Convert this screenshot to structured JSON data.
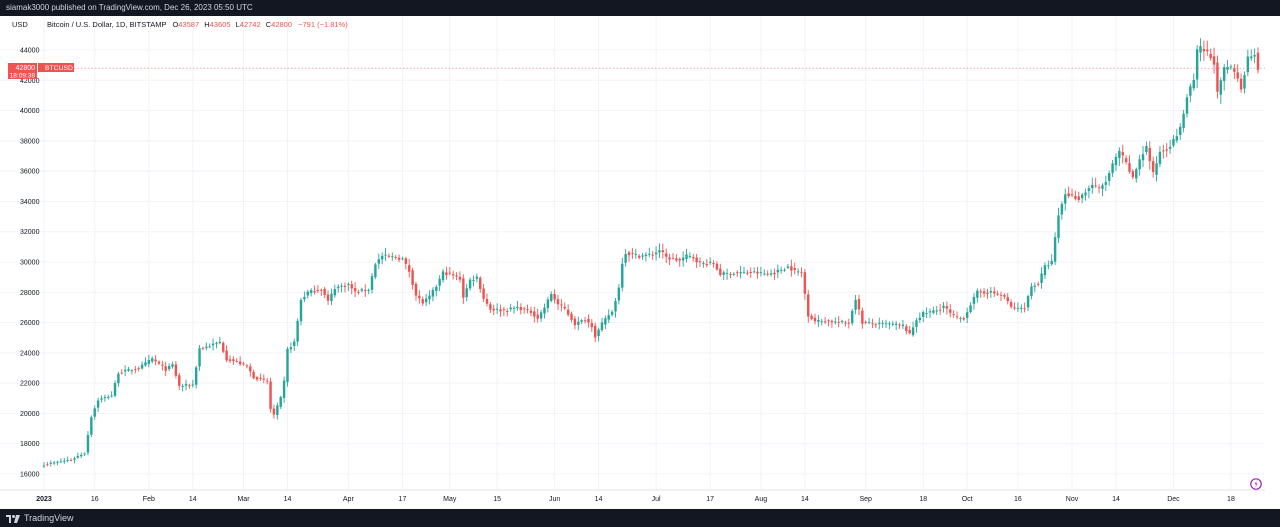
{
  "header": {
    "published": "siamak3000 published on TradingView.com, Dec 26, 2023 05:50 UTC"
  },
  "footer": {
    "brand": "TradingView",
    "logo": "tradingview-logo-icon"
  },
  "chart_data": {
    "type": "candlestick",
    "title": "Bitcoin / U.S. Dollar, 1D, BITSTAMP",
    "currency": "USD",
    "ohlc_readout": {
      "o_label": "O",
      "o": "43587",
      "h_label": "H",
      "h": "43605",
      "l_label": "L",
      "l": "42742",
      "c_label": "C",
      "c": "42800",
      "change": "−791 (−1.81%)"
    },
    "last_price": {
      "value": "42800",
      "countdown": "18:09:38",
      "symbol": "BTCUSD",
      "price": 42800
    },
    "yaxis": {
      "min": 15000,
      "max": 45000,
      "ticks": [
        16000,
        18000,
        20000,
        22000,
        24000,
        26000,
        28000,
        30000,
        32000,
        34000,
        36000,
        38000,
        40000,
        42000,
        44000
      ]
    },
    "xaxis": {
      "ticks": [
        {
          "label": "2023",
          "day": 0
        },
        {
          "label": "16",
          "day": 15
        },
        {
          "label": "Feb",
          "day": 31
        },
        {
          "label": "14",
          "day": 44
        },
        {
          "label": "Mar",
          "day": 59
        },
        {
          "label": "14",
          "day": 72
        },
        {
          "label": "Apr",
          "day": 90
        },
        {
          "label": "17",
          "day": 106
        },
        {
          "label": "May",
          "day": 120
        },
        {
          "label": "15",
          "day": 134
        },
        {
          "label": "Jun",
          "day": 151
        },
        {
          "label": "14",
          "day": 164
        },
        {
          "label": "Jul",
          "day": 181
        },
        {
          "label": "17",
          "day": 197
        },
        {
          "label": "Aug",
          "day": 212
        },
        {
          "label": "14",
          "day": 225
        },
        {
          "label": "Sep",
          "day": 243
        },
        {
          "label": "18",
          "day": 260
        },
        {
          "label": "Oct",
          "day": 273
        },
        {
          "label": "16",
          "day": 288
        },
        {
          "label": "Nov",
          "day": 304
        },
        {
          "label": "14",
          "day": 317
        },
        {
          "label": "Dec",
          "day": 334
        },
        {
          "label": "18",
          "day": 351
        }
      ],
      "last_day": 359
    },
    "grid": true,
    "colors": {
      "up": "#26a69a",
      "down": "#ef5350",
      "grid": "#f0f3fa",
      "axis_text": "#131722",
      "bg": "#ffffff"
    },
    "price_path": [
      [
        0,
        16620
      ],
      [
        8,
        16950
      ],
      [
        12,
        17400
      ],
      [
        14,
        19800
      ],
      [
        16,
        20900
      ],
      [
        20,
        21200
      ],
      [
        22,
        22700
      ],
      [
        28,
        23000
      ],
      [
        32,
        23600
      ],
      [
        36,
        22900
      ],
      [
        38,
        23200
      ],
      [
        40,
        21800
      ],
      [
        44,
        21900
      ],
      [
        46,
        24300
      ],
      [
        48,
        24400
      ],
      [
        52,
        24700
      ],
      [
        54,
        23600
      ],
      [
        57,
        23400
      ],
      [
        60,
        23100
      ],
      [
        62,
        22400
      ],
      [
        66,
        22100
      ],
      [
        67,
        20300
      ],
      [
        68,
        19900
      ],
      [
        70,
        21000
      ],
      [
        71,
        22100
      ],
      [
        72,
        24200
      ],
      [
        74,
        24700
      ],
      [
        76,
        27500
      ],
      [
        78,
        28000
      ],
      [
        82,
        28200
      ],
      [
        84,
        27400
      ],
      [
        86,
        28300
      ],
      [
        88,
        28400
      ],
      [
        90,
        28500
      ],
      [
        92,
        28000
      ],
      [
        96,
        28200
      ],
      [
        98,
        29900
      ],
      [
        100,
        30400
      ],
      [
        104,
        30300
      ],
      [
        106,
        30200
      ],
      [
        108,
        29400
      ],
      [
        110,
        27800
      ],
      [
        112,
        27300
      ],
      [
        114,
        27700
      ],
      [
        116,
        28400
      ],
      [
        118,
        29300
      ],
      [
        120,
        29200
      ],
      [
        123,
        28900
      ],
      [
        124,
        27700
      ],
      [
        126,
        28800
      ],
      [
        128,
        29000
      ],
      [
        130,
        27600
      ],
      [
        132,
        26900
      ],
      [
        136,
        26800
      ],
      [
        140,
        27000
      ],
      [
        144,
        26700
      ],
      [
        146,
        26300
      ],
      [
        148,
        27000
      ],
      [
        150,
        27900
      ],
      [
        152,
        27200
      ],
      [
        154,
        26900
      ],
      [
        157,
        25900
      ],
      [
        160,
        26200
      ],
      [
        162,
        25800
      ],
      [
        163,
        25100
      ],
      [
        165,
        25900
      ],
      [
        167,
        26500
      ],
      [
        168,
        26700
      ],
      [
        170,
        28300
      ],
      [
        171,
        30000
      ],
      [
        172,
        30600
      ],
      [
        176,
        30400
      ],
      [
        180,
        30500
      ],
      [
        182,
        30800
      ],
      [
        184,
        30300
      ],
      [
        186,
        30200
      ],
      [
        188,
        30100
      ],
      [
        190,
        30400
      ],
      [
        192,
        30300
      ],
      [
        194,
        29900
      ],
      [
        198,
        29900
      ],
      [
        200,
        29200
      ],
      [
        206,
        29300
      ],
      [
        210,
        29300
      ],
      [
        214,
        29200
      ],
      [
        216,
        29300
      ],
      [
        220,
        29700
      ],
      [
        222,
        29400
      ],
      [
        224,
        29300
      ],
      [
        226,
        26500
      ],
      [
        228,
        26100
      ],
      [
        232,
        26100
      ],
      [
        236,
        26000
      ],
      [
        238,
        26000
      ],
      [
        240,
        27600
      ],
      [
        242,
        26000
      ],
      [
        246,
        25900
      ],
      [
        250,
        25900
      ],
      [
        254,
        25800
      ],
      [
        256,
        25200
      ],
      [
        258,
        26200
      ],
      [
        260,
        26600
      ],
      [
        264,
        26800
      ],
      [
        266,
        27100
      ],
      [
        268,
        26600
      ],
      [
        270,
        26300
      ],
      [
        272,
        26300
      ],
      [
        274,
        27200
      ],
      [
        276,
        28000
      ],
      [
        280,
        28000
      ],
      [
        284,
        27700
      ],
      [
        286,
        27000
      ],
      [
        288,
        26900
      ],
      [
        290,
        27000
      ],
      [
        292,
        28400
      ],
      [
        294,
        28600
      ],
      [
        296,
        29700
      ],
      [
        298,
        30000
      ],
      [
        300,
        33100
      ],
      [
        302,
        34500
      ],
      [
        306,
        34200
      ],
      [
        310,
        35100
      ],
      [
        312,
        34800
      ],
      [
        314,
        35300
      ],
      [
        316,
        36400
      ],
      [
        318,
        37300
      ],
      [
        320,
        36500
      ],
      [
        322,
        35500
      ],
      [
        324,
        36800
      ],
      [
        326,
        37600
      ],
      [
        328,
        35800
      ],
      [
        330,
        37300
      ],
      [
        332,
        37500
      ],
      [
        334,
        38000
      ],
      [
        336,
        38800
      ],
      [
        338,
        40900
      ],
      [
        340,
        42000
      ],
      [
        341,
        43900
      ],
      [
        342,
        44100
      ],
      [
        344,
        43800
      ],
      [
        346,
        43200
      ],
      [
        347,
        41100
      ],
      [
        349,
        42700
      ],
      [
        350,
        42900
      ],
      [
        352,
        42600
      ],
      [
        354,
        41500
      ],
      [
        356,
        43500
      ],
      [
        358,
        43800
      ],
      [
        359,
        42800
      ]
    ]
  }
}
